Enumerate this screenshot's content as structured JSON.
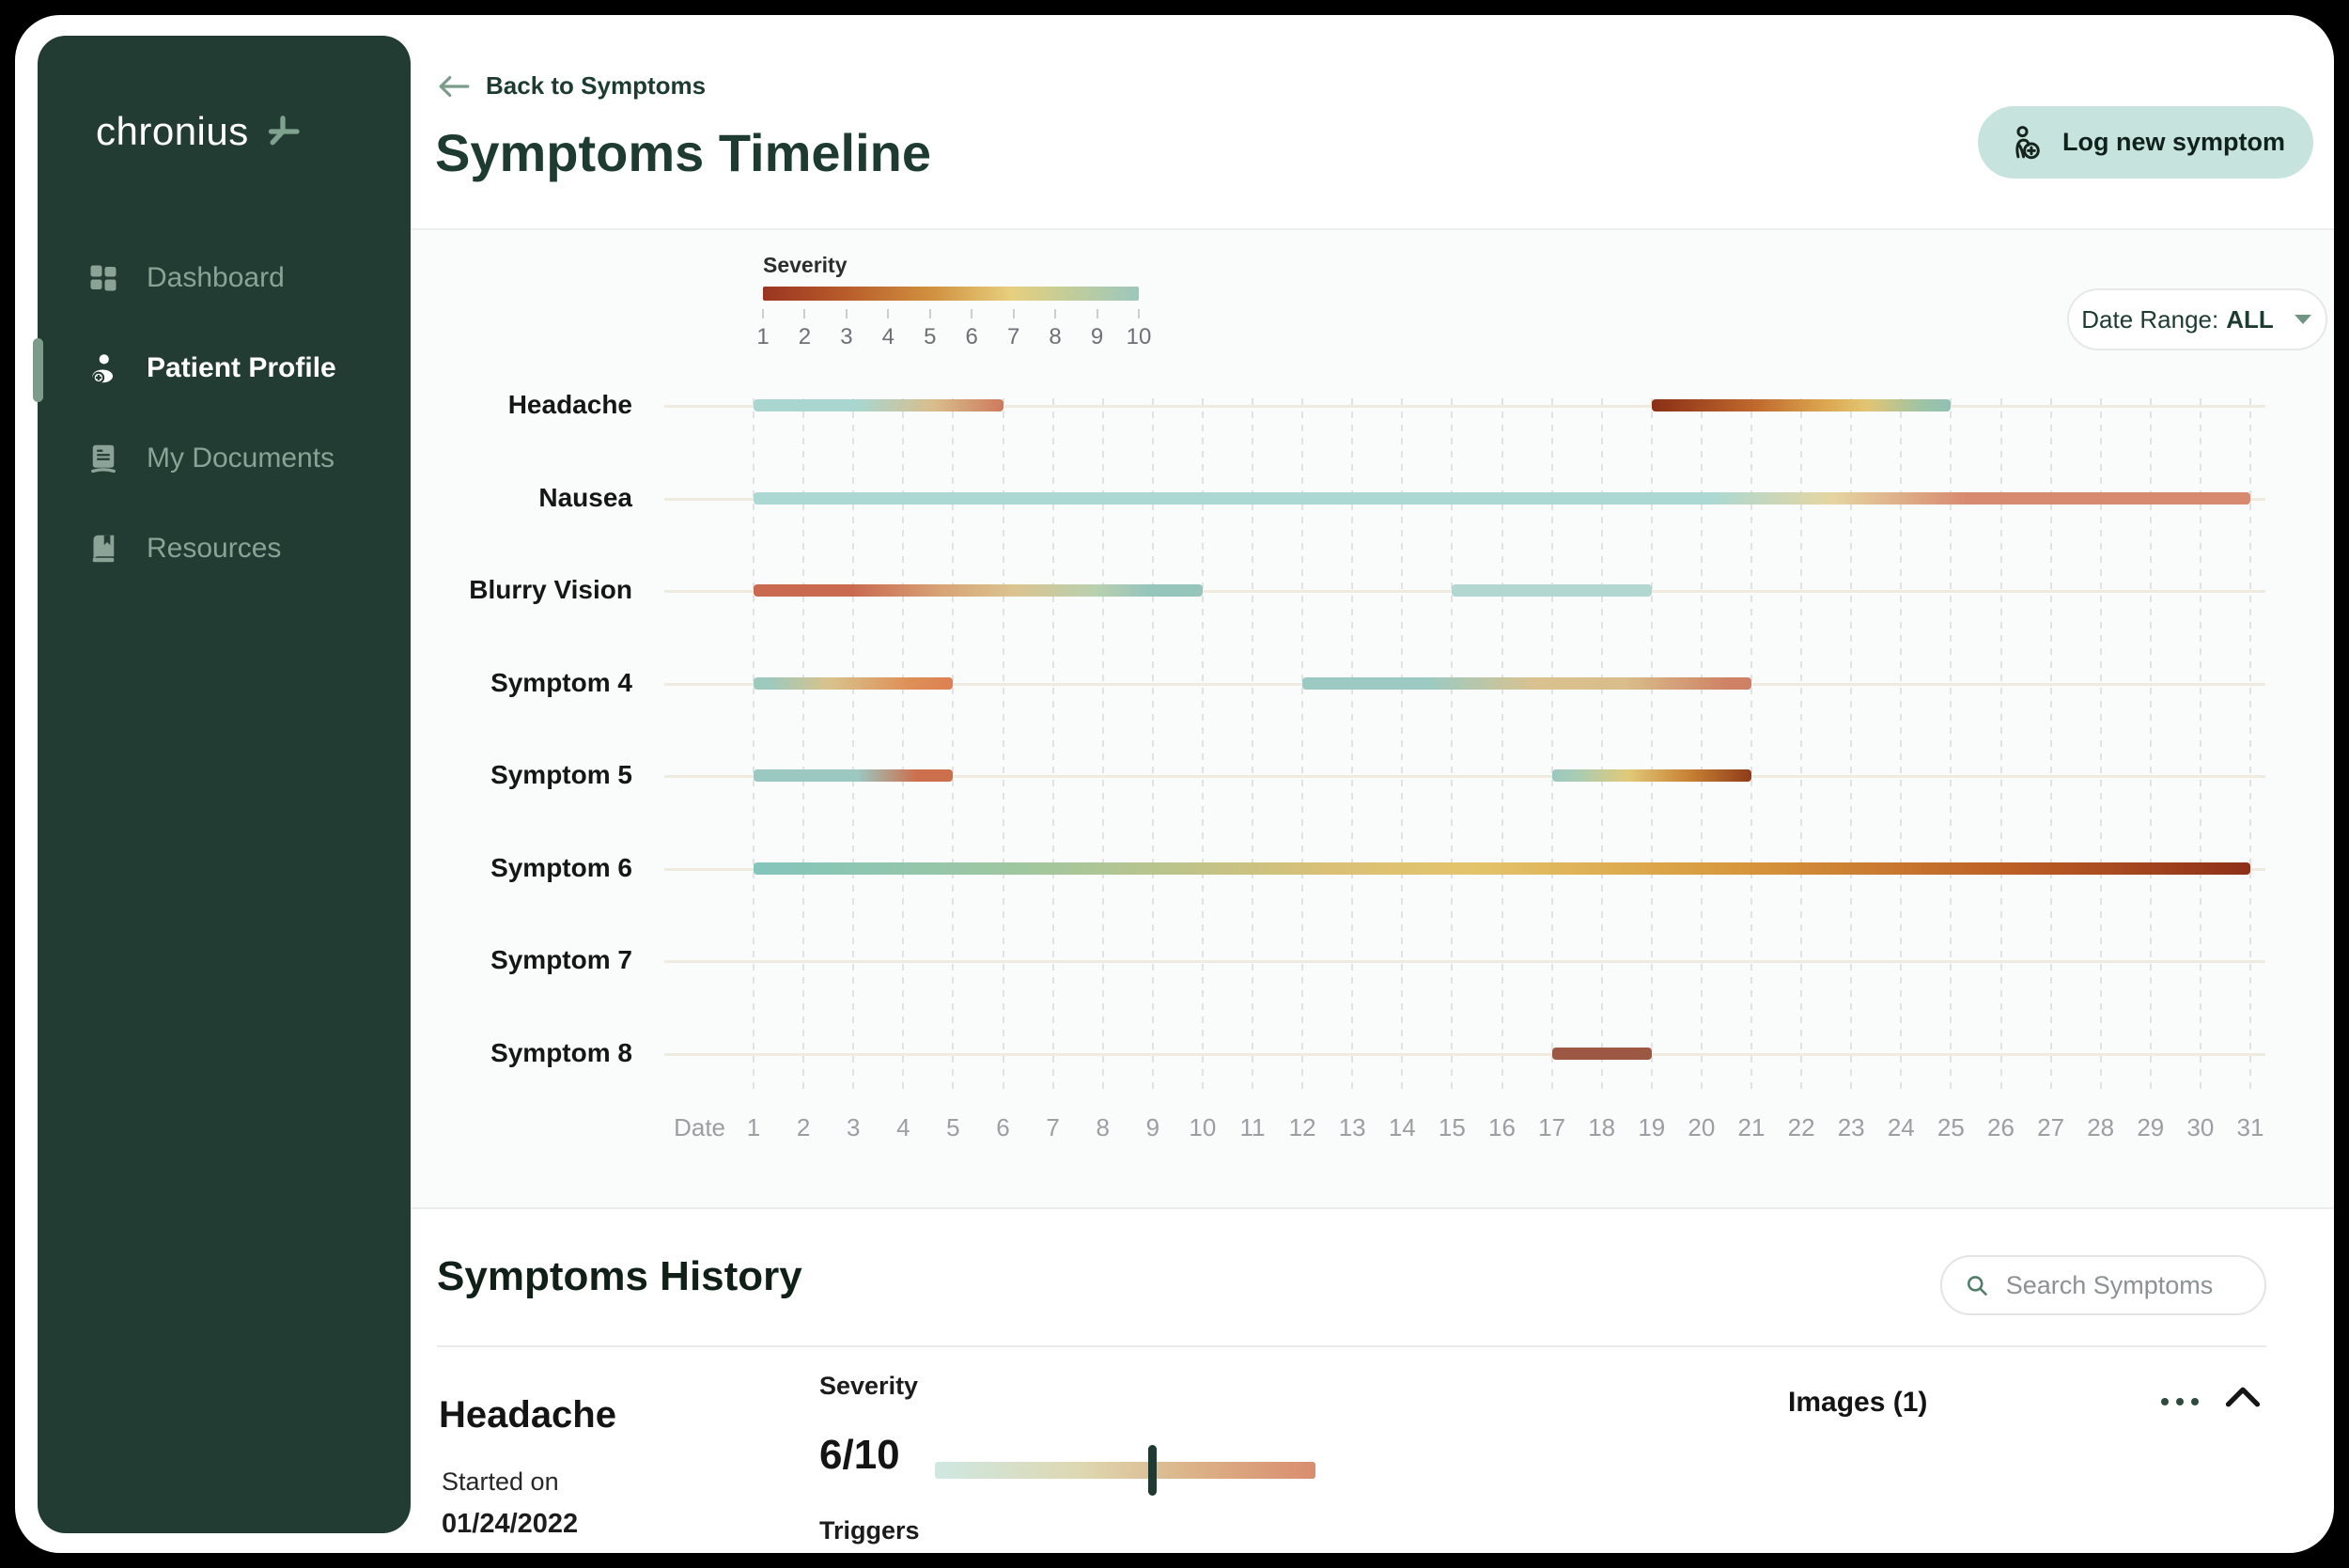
{
  "colors": {
    "sidebar_bg": "#223B33",
    "sidebar_inactive": "#8AA396",
    "sidebar_active": "#FFFFFF",
    "accent_green": "#7D9B8A",
    "heading_green": "#1D3B31",
    "button_bg": "#C6E3DD",
    "chart_bg": "#FAFBFB",
    "baseline": "#EFEBE0",
    "gridline": "#E0E2E4",
    "axis_text": "#9B9FA2",
    "slider_marker": "#1E3A32"
  },
  "sidebar": {
    "logo_text": "chronius",
    "items": [
      {
        "label": "Dashboard",
        "icon": "dashboard",
        "active": false
      },
      {
        "label": "Patient Profile",
        "icon": "patient",
        "active": true
      },
      {
        "label": "My Documents",
        "icon": "documents",
        "active": false
      },
      {
        "label": "Resources",
        "icon": "resources",
        "active": false
      }
    ]
  },
  "header": {
    "back_label": "Back to Symptoms",
    "title": "Symptoms Timeline",
    "log_button": "Log new symptom"
  },
  "chart": {
    "legend": {
      "title": "Severity",
      "ticks": [
        "1",
        "2",
        "3",
        "4",
        "5",
        "6",
        "7",
        "8",
        "9",
        "10"
      ],
      "gradient_stops": [
        "#9A3520 0%",
        "#B85C2B 22%",
        "#D1913F 45%",
        "#E7CF7E 66%",
        "#C5CD97 80%",
        "#9CC8BC 100%"
      ]
    },
    "date_range": {
      "label": "Date Range:",
      "value": "ALL"
    },
    "axis": {
      "label": "Date",
      "days": [
        1,
        2,
        3,
        4,
        5,
        6,
        7,
        8,
        9,
        10,
        11,
        12,
        13,
        14,
        15,
        16,
        17,
        18,
        19,
        20,
        21,
        22,
        23,
        24,
        25,
        26,
        27,
        28,
        29,
        30,
        31
      ]
    },
    "rows": [
      {
        "label": "Headache",
        "bars": [
          {
            "start": 1,
            "end": 6,
            "stops": [
              "#A9D6CE 0%",
              "#A9D6CE 42%",
              "#D9BD8D 72%",
              "#CD7B5C 100%"
            ]
          },
          {
            "start": 19,
            "end": 25,
            "stops": [
              "#8A2F16 0%",
              "#C06A2E 35%",
              "#DCA74F 58%",
              "#E2C573 72%",
              "#9FC4A4 90%",
              "#8FC0B4 100%"
            ]
          }
        ]
      },
      {
        "label": "Nausea",
        "bars": [
          {
            "start": 1,
            "end": 31,
            "stops": [
              "#ABD8D2 0%",
              "#ABD8D2 64%",
              "#E5D5A2 72%",
              "#D88A70 81%",
              "#D88A70 100%"
            ]
          }
        ]
      },
      {
        "label": "Blurry Vision",
        "bars": [
          {
            "start": 1,
            "end": 10,
            "stops": [
              "#C96A50 0%",
              "#C96A50 22%",
              "#D8A476 42%",
              "#DBC490 58%",
              "#B9D0B0 76%",
              "#96C5BC 88%",
              "#96C5BC 100%"
            ]
          },
          {
            "start": 15,
            "end": 19,
            "stops": [
              "#B2D6D0 0%",
              "#B2D6D0 100%"
            ]
          }
        ]
      },
      {
        "label": "Symptom 4",
        "bars": [
          {
            "start": 1,
            "end": 5,
            "stops": [
              "#9EC9BD 0%",
              "#9EC9BD 8%",
              "#D9C28C 38%",
              "#DE9058 78%",
              "#DE8052 100%"
            ]
          },
          {
            "start": 12,
            "end": 21,
            "stops": [
              "#9CCAC2 0%",
              "#9CCAC2 28%",
              "#D9C28F 52%",
              "#D9BD8B 72%",
              "#CF8165 95%",
              "#CF8165 100%"
            ]
          }
        ]
      },
      {
        "label": "Symptom 5",
        "bars": [
          {
            "start": 1,
            "end": 5,
            "stops": [
              "#9CC8C2 0%",
              "#9CC8C2 52%",
              "#CC6F4C 82%",
              "#CC6F4C 100%"
            ]
          },
          {
            "start": 17,
            "end": 21,
            "stops": [
              "#9CC8C0 0%",
              "#A8CCB4 12%",
              "#E0CA79 38%",
              "#C98335 68%",
              "#8E3C18 100%"
            ]
          }
        ]
      },
      {
        "label": "Symptom 6",
        "bars": [
          {
            "start": 1,
            "end": 31,
            "stops": [
              "#83C5BC 0%",
              "#9FC79F 18%",
              "#D9C077 38%",
              "#E3C46B 48%",
              "#D89A3E 65%",
              "#BC5F25 84%",
              "#8E3019 100%"
            ]
          }
        ]
      },
      {
        "label": "Symptom 7",
        "bars": []
      },
      {
        "label": "Symptom 8",
        "bars": [
          {
            "start": 17,
            "end": 19,
            "stops": [
              "#9C5843 0%",
              "#9C5843 100%"
            ]
          }
        ]
      }
    ]
  },
  "history": {
    "title": "Symptoms History",
    "search_placeholder": "Search Symptoms",
    "entry": {
      "name": "Headache",
      "started_label": "Started on",
      "started_date": "01/24/2022",
      "severity_label": "Severity",
      "severity_value": "6/10",
      "slider": {
        "stops": [
          "#CFE8E2 0%",
          "#DED8B2 38%",
          "#DCB287 68%",
          "#D98D6F 100%"
        ],
        "marker_percent": 57
      },
      "triggers_label": "Triggers",
      "images_label": "Images (1)"
    }
  }
}
